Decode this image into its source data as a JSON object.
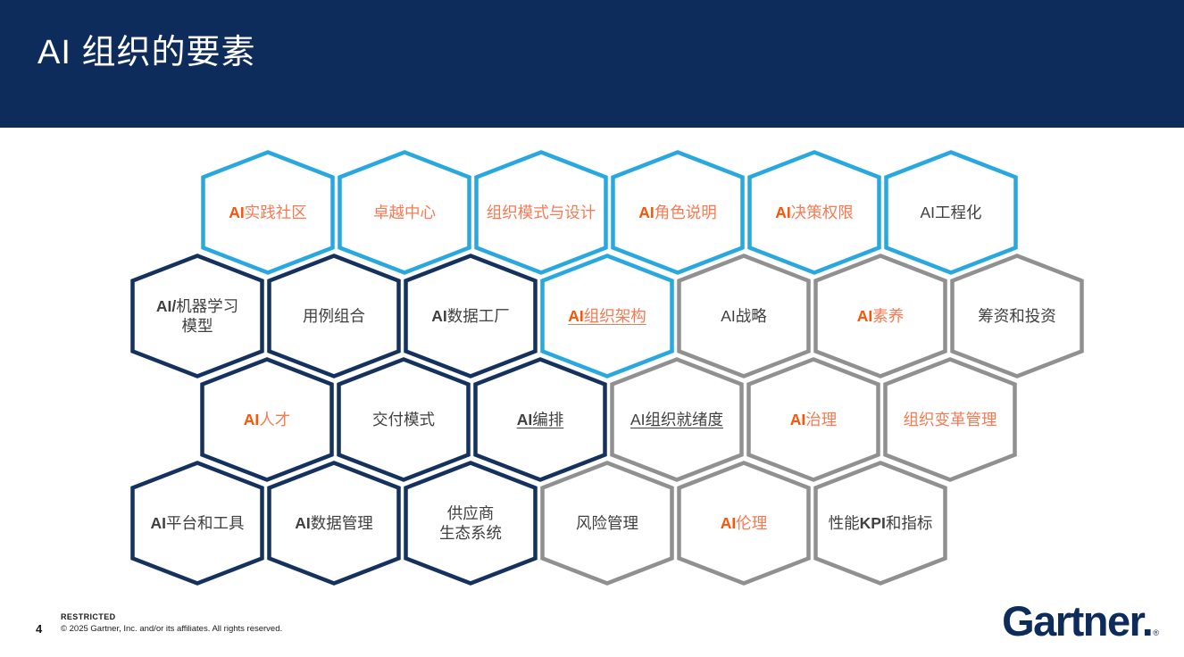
{
  "title": "AI 组织的要素",
  "footer": {
    "restricted": "RESTRICTED",
    "page_number": "4",
    "copyright": "© 2025 Gartner, Inc. and/or its affiliates. All rights reserved.",
    "logo": "Gartner.",
    "logo_reg": "®"
  },
  "colors": {
    "header_bg": "#0D2B5B",
    "border_blue": "#29A8E0",
    "border_navy": "#15325F",
    "border_gray": "#909090",
    "text_dark": "#404040",
    "text_orange": "#F97A52",
    "text_orange_bold": "#FF5306",
    "logo_navy": "#0D2B5B"
  },
  "rows": [
    {
      "hexes": [
        {
          "border": "blue",
          "color": "orange",
          "underline": false,
          "parts": [
            {
              "t": "AI",
              "b": true
            },
            {
              "t": "实践社区"
            }
          ]
        },
        {
          "border": "blue",
          "color": "orange",
          "underline": false,
          "parts": [
            {
              "t": "卓越中心"
            }
          ]
        },
        {
          "border": "blue",
          "color": "orange",
          "underline": false,
          "parts": [
            {
              "t": "组织模式与设计"
            }
          ]
        },
        {
          "border": "blue",
          "color": "orange",
          "underline": false,
          "parts": [
            {
              "t": "AI",
              "b": true
            },
            {
              "t": "角色说明"
            }
          ]
        },
        {
          "border": "blue",
          "color": "orange",
          "underline": false,
          "parts": [
            {
              "t": "AI",
              "b": true
            },
            {
              "t": "决策权限"
            }
          ]
        },
        {
          "border": "blue",
          "color": "dark",
          "underline": false,
          "parts": [
            {
              "t": "AI工程化"
            }
          ]
        }
      ]
    },
    {
      "hexes": [
        {
          "border": "navy",
          "color": "dark",
          "underline": false,
          "parts": [
            {
              "t": "AI/",
              "b": true
            },
            {
              "t": "机器学习"
            },
            {
              "t": "模型",
              "br": true
            }
          ]
        },
        {
          "border": "navy",
          "color": "dark",
          "underline": false,
          "parts": [
            {
              "t": "用例组合"
            }
          ]
        },
        {
          "border": "navy",
          "color": "dark",
          "underline": false,
          "parts": [
            {
              "t": "AI",
              "b": true
            },
            {
              "t": "数据工厂"
            }
          ]
        },
        {
          "border": "blue",
          "color": "orange",
          "underline": true,
          "parts": [
            {
              "t": "AI",
              "b": true
            },
            {
              "t": "组织架构"
            }
          ]
        },
        {
          "border": "gray",
          "color": "dark",
          "underline": false,
          "parts": [
            {
              "t": "AI战略"
            }
          ]
        },
        {
          "border": "gray",
          "color": "orange",
          "underline": false,
          "parts": [
            {
              "t": "AI",
              "b": true
            },
            {
              "t": "素养"
            }
          ]
        },
        {
          "border": "gray",
          "color": "dark",
          "underline": false,
          "parts": [
            {
              "t": "筹资和投资"
            }
          ]
        }
      ]
    },
    {
      "hexes": [
        {
          "border": "navy",
          "color": "orange",
          "underline": false,
          "parts": [
            {
              "t": "AI",
              "b": true
            },
            {
              "t": "人才"
            }
          ]
        },
        {
          "border": "navy",
          "color": "dark",
          "underline": false,
          "parts": [
            {
              "t": "交付模式"
            }
          ]
        },
        {
          "border": "navy",
          "color": "dark",
          "underline": true,
          "parts": [
            {
              "t": "AI",
              "b": true
            },
            {
              "t": "编排"
            }
          ]
        },
        {
          "border": "gray",
          "color": "dark",
          "underline": true,
          "parts": [
            {
              "t": "AI组织就绪度"
            }
          ]
        },
        {
          "border": "gray",
          "color": "orange",
          "underline": false,
          "parts": [
            {
              "t": "AI",
              "b": true
            },
            {
              "t": "治理"
            }
          ]
        },
        {
          "border": "gray",
          "color": "orange",
          "underline": false,
          "parts": [
            {
              "t": "组织变革管理"
            }
          ]
        }
      ]
    },
    {
      "hexes": [
        {
          "border": "navy",
          "color": "dark",
          "underline": false,
          "parts": [
            {
              "t": "AI",
              "b": true
            },
            {
              "t": "平台和工具"
            }
          ]
        },
        {
          "border": "navy",
          "color": "dark",
          "underline": false,
          "parts": [
            {
              "t": "AI",
              "b": true
            },
            {
              "t": "数据管理"
            }
          ]
        },
        {
          "border": "navy",
          "color": "dark",
          "underline": false,
          "parts": [
            {
              "t": "供应商"
            },
            {
              "t": "生态系统",
              "br": true
            }
          ]
        },
        {
          "border": "gray",
          "color": "dark",
          "underline": false,
          "parts": [
            {
              "t": "风险管理"
            }
          ]
        },
        {
          "border": "gray",
          "color": "orange",
          "underline": false,
          "parts": [
            {
              "t": "AI",
              "b": true
            },
            {
              "t": "伦理"
            }
          ]
        },
        {
          "border": "gray",
          "color": "dark",
          "underline": false,
          "parts": [
            {
              "t": "性能"
            },
            {
              "t": "KPI",
              "b": true
            },
            {
              "t": "和指标"
            }
          ]
        }
      ]
    }
  ]
}
